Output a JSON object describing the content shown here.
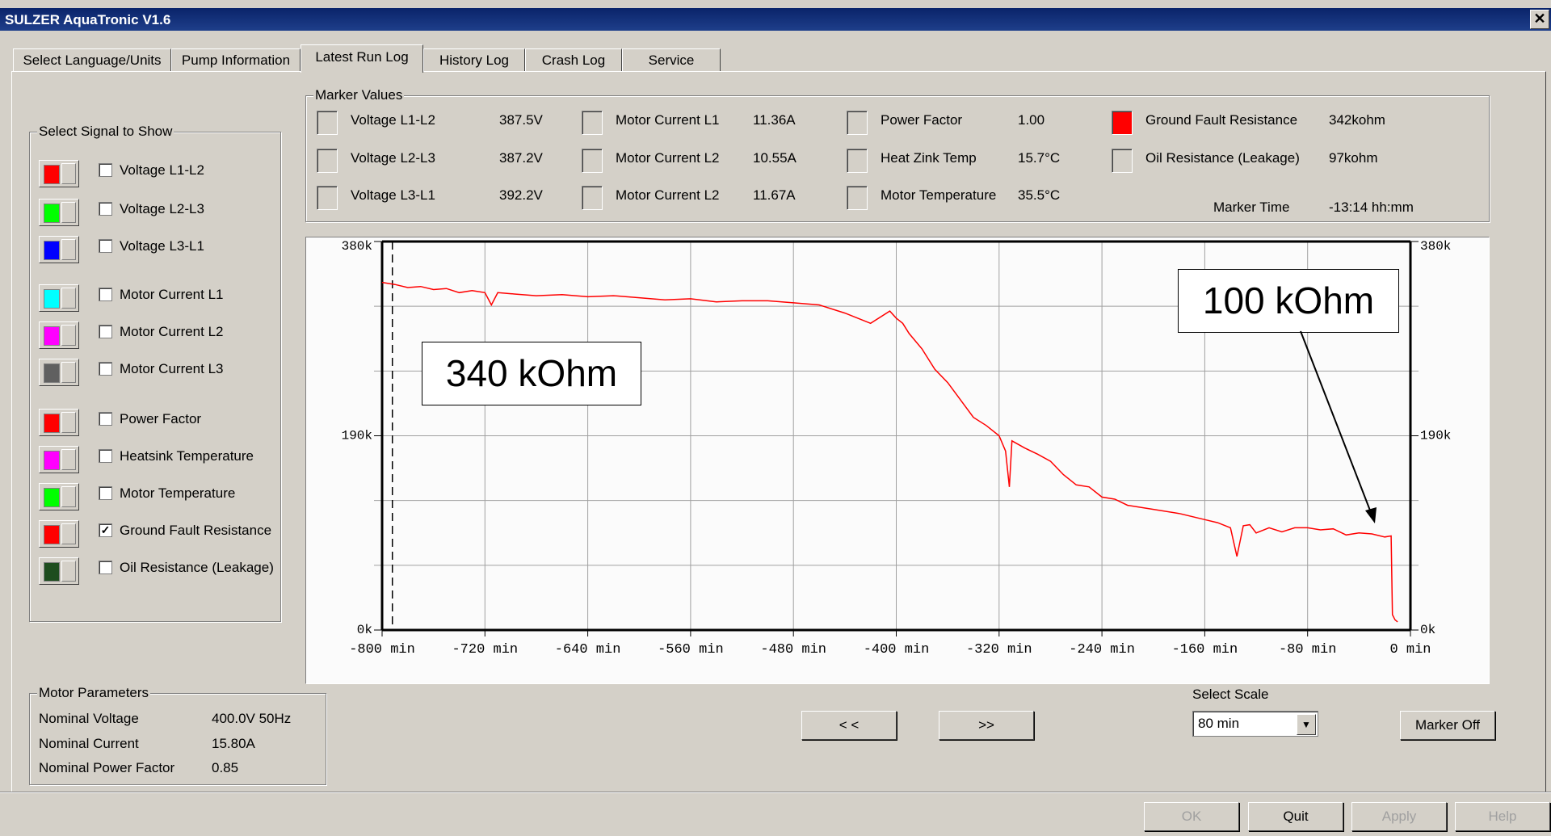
{
  "window": {
    "title": "SULZER AquaTronic V1.6",
    "close_glyph": "✕"
  },
  "tabs": [
    "Select Language/Units",
    "Pump Information",
    "Latest Run Log",
    "History Log",
    "Crash Log",
    "Service"
  ],
  "active_tab": "Latest Run Log",
  "signals": {
    "title": "Select Signal to Show",
    "items": [
      {
        "label": "Voltage L1-L2",
        "color": "#ff0000",
        "checked": false
      },
      {
        "label": "Voltage L2-L3",
        "color": "#00ff00",
        "checked": false
      },
      {
        "label": "Voltage L3-L1",
        "color": "#0000ff",
        "checked": false
      },
      {
        "label": "Motor Current L1",
        "color": "#00ffff",
        "checked": false
      },
      {
        "label": "Motor Current L2",
        "color": "#ff00ff",
        "checked": false
      },
      {
        "label": "Motor Current L3",
        "color": "#606060",
        "checked": false
      },
      {
        "label": "Power Factor",
        "color": "#ff0000",
        "checked": false
      },
      {
        "label": "Heatsink Temperature",
        "color": "#ff00ff",
        "checked": false
      },
      {
        "label": "Motor Temperature",
        "color": "#00ff00",
        "checked": false
      },
      {
        "label": "Ground Fault Resistance",
        "color": "#ff0000",
        "checked": true
      },
      {
        "label": "Oil Resistance (Leakage)",
        "color": "#1e4d1e",
        "checked": false
      }
    ]
  },
  "marker": {
    "title": "Marker Values",
    "columns": [
      [
        {
          "label": "Voltage L1-L2",
          "value": "387.5V",
          "color": ""
        },
        {
          "label": "Voltage L2-L3",
          "value": "387.2V",
          "color": ""
        },
        {
          "label": "Voltage L3-L1",
          "value": "392.2V",
          "color": ""
        }
      ],
      [
        {
          "label": "Motor Current L1",
          "value": "11.36A",
          "color": ""
        },
        {
          "label": "Motor Current L2",
          "value": "10.55A",
          "color": ""
        },
        {
          "label": "Motor Current L2",
          "value": "11.67A",
          "color": ""
        }
      ],
      [
        {
          "label": "Power Factor",
          "value": "1.00",
          "color": ""
        },
        {
          "label": "Heat Zink Temp",
          "value": "15.7°C",
          "color": ""
        },
        {
          "label": "Motor Temperature",
          "value": "35.5°C",
          "color": ""
        }
      ],
      [
        {
          "label": "Ground Fault Resistance",
          "value": "342kohm",
          "color": "#ff0000"
        },
        {
          "label": "Oil Resistance (Leakage)",
          "value": "97kohm",
          "color": ""
        }
      ]
    ],
    "time_label": "Marker Time",
    "time_value": "-13:14 hh:mm"
  },
  "motor_params": {
    "title": "Motor Parameters",
    "rows": [
      {
        "label": "Nominal Voltage",
        "value": "400.0V 50Hz"
      },
      {
        "label": "Nominal Current",
        "value": "15.80A"
      },
      {
        "label": "Nominal Power Factor",
        "value": "0.85"
      }
    ]
  },
  "nav": {
    "prev": "< <",
    "next": ">>"
  },
  "scale": {
    "label": "Select Scale",
    "value": "80 min"
  },
  "marker_off": "Marker Off",
  "bottom_buttons": {
    "ok": "OK",
    "quit": "Quit",
    "apply": "Apply",
    "help": "Help"
  },
  "annotations": {
    "left": "340 kOhm",
    "right": "100 kOhm"
  },
  "chart_data": {
    "type": "line",
    "series": [
      {
        "color": "#ff0000"
      }
    ],
    "x": [
      -800,
      -790,
      -780,
      -770,
      -760,
      -750,
      -740,
      -730,
      -720,
      -715,
      -710,
      -700,
      -680,
      -660,
      -640,
      -620,
      -600,
      -580,
      -560,
      -540,
      -520,
      -500,
      -480,
      -460,
      -440,
      -420,
      -405,
      -400,
      -395,
      -390,
      -380,
      -370,
      -360,
      -350,
      -340,
      -330,
      -320,
      -315,
      -312,
      -310,
      -300,
      -290,
      -280,
      -270,
      -260,
      -250,
      -240,
      -230,
      -220,
      -200,
      -180,
      -160,
      -150,
      -140,
      -135,
      -130,
      -125,
      -120,
      -110,
      -100,
      -90,
      -80,
      -70,
      -60,
      -50,
      -40,
      -30,
      -20,
      -15,
      -14,
      -12,
      -10
    ],
    "y": [
      340,
      338,
      335,
      336,
      333,
      334,
      330,
      332,
      330,
      318,
      330,
      329,
      327,
      328,
      326,
      327,
      325,
      323,
      324,
      321,
      322,
      322,
      320,
      318,
      310,
      300,
      312,
      305,
      300,
      290,
      275,
      255,
      242,
      225,
      208,
      200,
      190,
      175,
      140,
      185,
      178,
      172,
      165,
      152,
      142,
      140,
      130,
      128,
      122,
      118,
      114,
      108,
      105,
      100,
      72,
      102,
      103,
      95,
      100,
      96,
      100,
      100,
      98,
      99,
      93,
      95,
      94,
      91,
      92,
      15,
      10,
      8
    ],
    "xlim": [
      -800,
      0
    ],
    "ylim": [
      0,
      380
    ],
    "xticks": [
      -800,
      -720,
      -640,
      -560,
      -480,
      -400,
      -320,
      -240,
      -160,
      -80,
      0
    ],
    "xtick_labels": [
      "-800 min",
      "-720 min",
      "-640 min",
      "-560 min",
      "-480 min",
      "-400 min",
      "-320 min",
      "-240 min",
      "-160 min",
      "-80 min",
      "0 min"
    ],
    "yticks": [
      0,
      190,
      380
    ],
    "ytick_labels": [
      "0k",
      "190k",
      "380k"
    ],
    "marker_x": -792,
    "grid": true
  }
}
